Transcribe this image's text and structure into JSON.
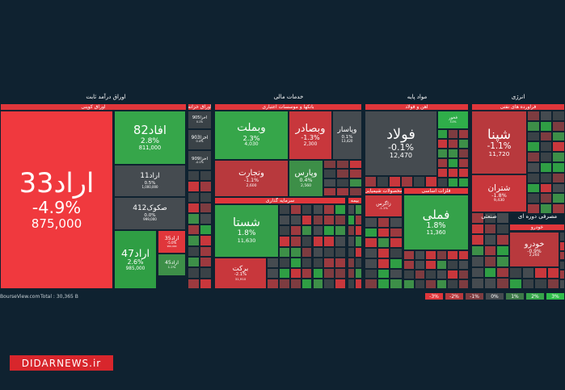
{
  "sectors": [
    {
      "title": "اوراق درآمد ثابت",
      "groups": [
        {
          "name": "اوراق کوپنی",
          "color": "#e0363b",
          "tiles": [
            {
              "symbol": "اراد33",
              "change": "-4.9%",
              "price": "875,000",
              "color": "#f0393e"
            },
            {
              "symbol": "افاد82",
              "change": "2.8%",
              "price": "811,000",
              "color": "#36a64a"
            },
            {
              "symbol": "اراد11",
              "change": "0.5%",
              "price": "1,000,000",
              "color": "#454b50"
            },
            {
              "symbol": "صکوک412",
              "change": "0.0%",
              "price": "999,000",
              "color": "#454b50"
            },
            {
              "symbol": "اراد47",
              "change": "2.6%",
              "price": "985,000",
              "color": "#2f9e44"
            },
            {
              "symbol": "اراد35",
              "change": "-5.0%",
              "price": "950,000",
              "color": "#e0363b"
            },
            {
              "symbol": "اراد45",
              "change": "1.2%",
              "color": "#3d8f48"
            }
          ]
        },
        {
          "name": "اوراق خزانه",
          "color": "#e0363b",
          "tiles": [
            {
              "symbol": "اخزا905",
              "change": "0.1%",
              "color": "#3a4247"
            },
            {
              "symbol": "اخزا903",
              "change": "0.4%",
              "color": "#3a4247"
            },
            {
              "symbol": "اخزا909",
              "change": "-0.1%",
              "color": "#3a4247"
            }
          ]
        }
      ]
    },
    {
      "title": "خدمات مالی",
      "groups": [
        {
          "name": "بانکها و موسسات اعتباری",
          "color": "#e0363b",
          "tiles": [
            {
              "symbol": "وبملت",
              "change": "2.3%",
              "price": "4,030",
              "color": "#36a64a"
            },
            {
              "symbol": "وبصادر",
              "change": "-1.3%",
              "price": "2,300",
              "color": "#c8373c"
            },
            {
              "symbol": "وپاسار",
              "change": "0.1%",
              "price": "13,420",
              "color": "#454b50"
            },
            {
              "symbol": "وتجارت",
              "change": "-1.1%",
              "price": "2,600",
              "color": "#b8393d"
            },
            {
              "symbol": "وپارس",
              "change": "0.4%",
              "price": "2,560",
              "color": "#3d8f48"
            }
          ]
        },
        {
          "name": "سرمایه گذاری",
          "color": "#e0363b",
          "tiles": [
            {
              "symbol": "شستا",
              "change": "1.8%",
              "price": "11,630",
              "color": "#35a24a"
            },
            {
              "symbol": "برکت",
              "change": "-2.1%",
              "price": "31,910",
              "color": "#c8373c"
            }
          ]
        },
        {
          "name": "بیمه",
          "color": "#e0363b",
          "tiles": []
        }
      ]
    },
    {
      "title": "مواد پایه",
      "groups": [
        {
          "name": "آهن و فولاد",
          "color": "#e0363b",
          "tiles": [
            {
              "symbol": "فولاد",
              "change": "-0.1%",
              "price": "12,470",
              "color": "#454b50"
            },
            {
              "symbol": "فخوز",
              "change": "3.0%",
              "color": "#2fae4a"
            }
          ]
        },
        {
          "name": "محصولات شیمیایی",
          "color": "#e0363b",
          "tiles": [
            {
              "symbol": "زاگرس",
              "change": "-1.1%",
              "color": "#c8373c"
            }
          ]
        },
        {
          "name": "فلزات اساسی",
          "color": "#e0363b",
          "tiles": [
            {
              "symbol": "فملی",
              "change": "1.8%",
              "price": "11,360",
              "color": "#35a24a"
            }
          ]
        }
      ]
    },
    {
      "title": "انرژی",
      "groups": [
        {
          "name": "فرآورده های نفتی",
          "color": "#e0363b",
          "tiles": [
            {
              "symbol": "شپنا",
              "change": "-1.1%",
              "price": "11,720",
              "color": "#b8393d"
            },
            {
              "symbol": "شتران",
              "change": "-1.8%",
              "price": "9,430",
              "color": "#c8373c"
            }
          ]
        }
      ]
    },
    {
      "title": "صنعتی",
      "groups": []
    },
    {
      "title": "مصرفی دوره ای",
      "groups": [
        {
          "name": "خودرو",
          "color": "#e0363b",
          "tiles": [
            {
              "symbol": "خودرو",
              "change": "-0.9%",
              "price": "2,260",
              "color": "#b8393d"
            }
          ]
        }
      ]
    }
  ],
  "footer": {
    "site": "BourseView.com",
    "total": "Total : 30,365 B"
  },
  "legend": [
    {
      "label": "-3%",
      "color": "#e0363b"
    },
    {
      "label": "-2%",
      "color": "#b8393d"
    },
    {
      "label": "-1%",
      "color": "#7d3c40"
    },
    {
      "label": "0%",
      "color": "#454b50"
    },
    {
      "label": "1%",
      "color": "#3d7a48"
    },
    {
      "label": "2%",
      "color": "#36a64a"
    },
    {
      "label": "3%",
      "color": "#2fbe4a"
    }
  ],
  "watermark": "DIDARNEWS.ir"
}
